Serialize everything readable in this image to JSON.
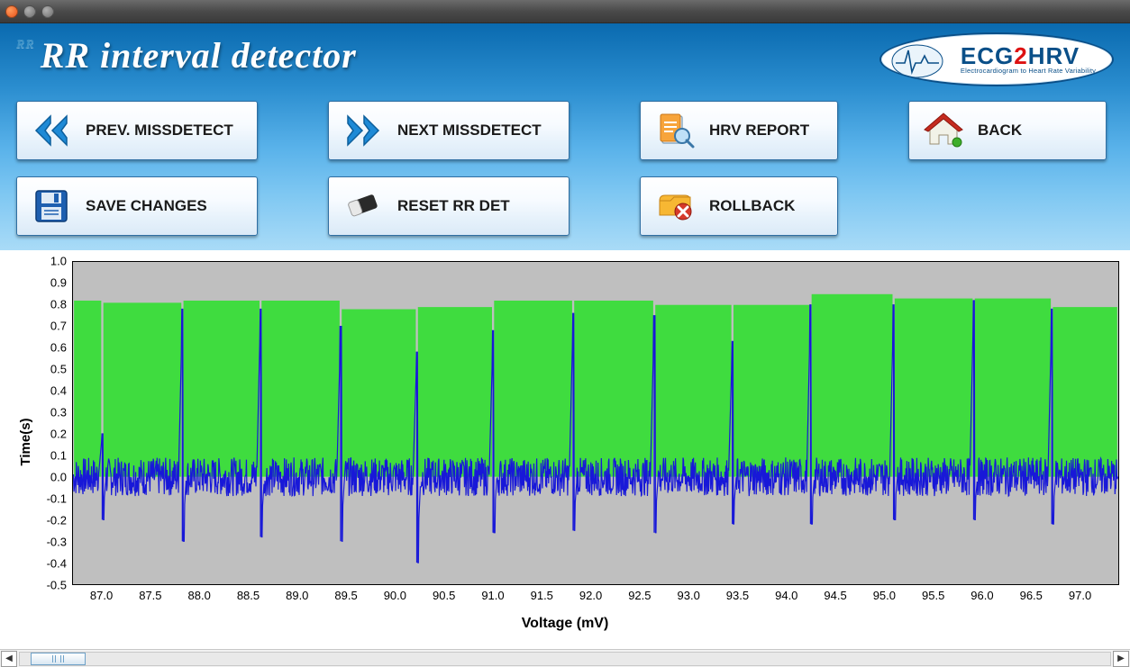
{
  "window": {
    "title": ""
  },
  "header": {
    "badge": "RR",
    "title": "RR interval detector",
    "logo": {
      "line1_a": "ECG",
      "line1_b": "2",
      "line1_c": "HRV",
      "line2": "Electrocardiogram to Heart Rate Variability"
    }
  },
  "buttons": {
    "prev": {
      "label": "PREV. MISSDETECT"
    },
    "next": {
      "label": "NEXT MISSDETECT"
    },
    "report": {
      "label": "HRV REPORT"
    },
    "back": {
      "label": "BACK"
    },
    "save": {
      "label": "SAVE CHANGES"
    },
    "reset": {
      "label": "RESET RR DET"
    },
    "rollback": {
      "label": "ROLLBACK"
    }
  },
  "chart": {
    "type": "line+bar",
    "ylabel": "Time(s)",
    "xlabel": "Voltage (mV)",
    "background_color": "#bfbfbf",
    "bar_color": "#3fdc3f",
    "line_color": "#1818d8",
    "axis_color": "#000000",
    "ylim": [
      -0.5,
      1.0
    ],
    "ytick_step": 0.1,
    "yticks": [
      "-0.5",
      "-0.4",
      "-0.3",
      "-0.2",
      "-0.1",
      "0.0",
      "0.1",
      "0.2",
      "0.3",
      "0.4",
      "0.5",
      "0.6",
      "0.7",
      "0.8",
      "0.9",
      "1.0"
    ],
    "xlim": [
      86.7,
      97.4
    ],
    "xtick_step": 0.5,
    "xticks": [
      "87.0",
      "87.5",
      "88.0",
      "88.5",
      "89.0",
      "89.5",
      "90.0",
      "90.5",
      "91.0",
      "91.5",
      "92.0",
      "92.5",
      "93.0",
      "93.5",
      "94.0",
      "94.5",
      "95.0",
      "95.5",
      "96.0",
      "96.5",
      "97.0"
    ],
    "rr_intervals": [
      {
        "x_start": 86.7,
        "x_end": 87.0,
        "height": 0.82
      },
      {
        "x_start": 87.0,
        "x_end": 87.82,
        "height": 0.81
      },
      {
        "x_start": 87.82,
        "x_end": 88.62,
        "height": 0.82
      },
      {
        "x_start": 88.62,
        "x_end": 89.44,
        "height": 0.82
      },
      {
        "x_start": 89.44,
        "x_end": 90.22,
        "height": 0.78
      },
      {
        "x_start": 90.22,
        "x_end": 91.0,
        "height": 0.79
      },
      {
        "x_start": 91.0,
        "x_end": 91.82,
        "height": 0.82
      },
      {
        "x_start": 91.82,
        "x_end": 92.65,
        "height": 0.82
      },
      {
        "x_start": 92.65,
        "x_end": 93.45,
        "height": 0.8
      },
      {
        "x_start": 93.45,
        "x_end": 94.25,
        "height": 0.8
      },
      {
        "x_start": 94.25,
        "x_end": 95.1,
        "height": 0.85
      },
      {
        "x_start": 95.1,
        "x_end": 95.92,
        "height": 0.83
      },
      {
        "x_start": 95.92,
        "x_end": 96.72,
        "height": 0.83
      },
      {
        "x_start": 96.72,
        "x_end": 97.4,
        "height": 0.79
      }
    ],
    "spikes": [
      {
        "x": 87.0,
        "peak": 0.2,
        "trough": -0.2
      },
      {
        "x": 87.82,
        "peak": 0.78,
        "trough": -0.3
      },
      {
        "x": 88.62,
        "peak": 0.78,
        "trough": -0.28
      },
      {
        "x": 89.44,
        "peak": 0.7,
        "trough": -0.3
      },
      {
        "x": 90.22,
        "peak": 0.58,
        "trough": -0.4
      },
      {
        "x": 91.0,
        "peak": 0.68,
        "trough": -0.26
      },
      {
        "x": 91.82,
        "peak": 0.76,
        "trough": -0.25
      },
      {
        "x": 92.65,
        "peak": 0.75,
        "trough": -0.26
      },
      {
        "x": 93.45,
        "peak": 0.63,
        "trough": -0.22
      },
      {
        "x": 94.25,
        "peak": 0.8,
        "trough": -0.22
      },
      {
        "x": 95.1,
        "peak": 0.8,
        "trough": -0.2
      },
      {
        "x": 95.92,
        "peak": 0.82,
        "trough": -0.2
      },
      {
        "x": 96.72,
        "peak": 0.78,
        "trough": -0.22
      }
    ],
    "noise": {
      "amplitude": 0.09,
      "baseline": 0.0,
      "seed": 7
    }
  },
  "scrollbar": {
    "thumb_left_pct": 1.0,
    "thumb_width_pct": 5.0
  }
}
